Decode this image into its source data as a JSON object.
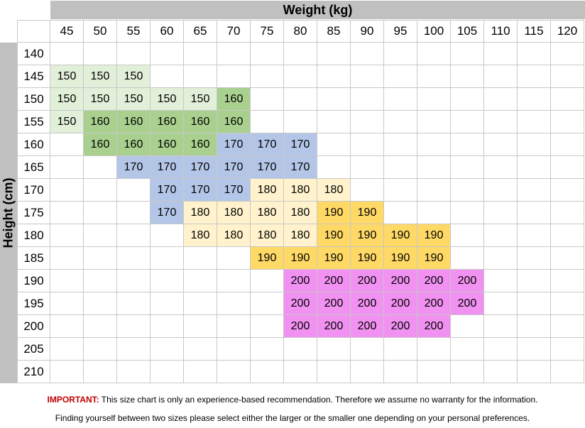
{
  "chart_data": {
    "type": "table",
    "title": "",
    "xlabel": "Weight (kg)",
    "ylabel": "Height (cm)",
    "weights": [
      45,
      50,
      55,
      60,
      65,
      70,
      75,
      80,
      85,
      90,
      95,
      100,
      105,
      110,
      115,
      120
    ],
    "heights": [
      140,
      145,
      150,
      155,
      160,
      165,
      170,
      175,
      180,
      185,
      190,
      195,
      200,
      205,
      210
    ],
    "size_colors": {
      "150": "#e2efd9",
      "160": "#a9d08e",
      "170": "#b4c6e7",
      "180": "#fff2cc",
      "190": "#ffd966",
      "200": "#f191f1"
    },
    "sizes": [
      [
        null,
        null,
        null,
        null,
        null,
        null,
        null,
        null,
        null,
        null,
        null,
        null,
        null,
        null,
        null,
        null
      ],
      [
        150,
        150,
        150,
        null,
        null,
        null,
        null,
        null,
        null,
        null,
        null,
        null,
        null,
        null,
        null,
        null
      ],
      [
        150,
        150,
        150,
        150,
        150,
        160,
        null,
        null,
        null,
        null,
        null,
        null,
        null,
        null,
        null,
        null
      ],
      [
        150,
        160,
        160,
        160,
        160,
        160,
        null,
        null,
        null,
        null,
        null,
        null,
        null,
        null,
        null,
        null
      ],
      [
        null,
        160,
        160,
        160,
        160,
        170,
        170,
        170,
        null,
        null,
        null,
        null,
        null,
        null,
        null,
        null
      ],
      [
        null,
        null,
        170,
        170,
        170,
        170,
        170,
        170,
        null,
        null,
        null,
        null,
        null,
        null,
        null,
        null
      ],
      [
        null,
        null,
        null,
        170,
        170,
        170,
        180,
        180,
        180,
        null,
        null,
        null,
        null,
        null,
        null,
        null
      ],
      [
        null,
        null,
        null,
        170,
        180,
        180,
        180,
        180,
        190,
        190,
        null,
        null,
        null,
        null,
        null,
        null
      ],
      [
        null,
        null,
        null,
        null,
        180,
        180,
        180,
        180,
        190,
        190,
        190,
        190,
        null,
        null,
        null,
        null
      ],
      [
        null,
        null,
        null,
        null,
        null,
        null,
        190,
        190,
        190,
        190,
        190,
        190,
        null,
        null,
        null,
        null
      ],
      [
        null,
        null,
        null,
        null,
        null,
        null,
        null,
        200,
        200,
        200,
        200,
        200,
        200,
        null,
        null,
        null
      ],
      [
        null,
        null,
        null,
        null,
        null,
        null,
        null,
        200,
        200,
        200,
        200,
        200,
        200,
        null,
        null,
        null
      ],
      [
        null,
        null,
        null,
        null,
        null,
        null,
        null,
        200,
        200,
        200,
        200,
        200,
        null,
        null,
        null,
        null
      ],
      [
        null,
        null,
        null,
        null,
        null,
        null,
        null,
        null,
        null,
        null,
        null,
        null,
        null,
        null,
        null,
        null
      ],
      [
        null,
        null,
        null,
        null,
        null,
        null,
        null,
        null,
        null,
        null,
        null,
        null,
        null,
        null,
        null,
        null
      ]
    ]
  },
  "notes": {
    "important_label": "IMPORTANT:",
    "line1": " This size chart is only an experience-based recommendation. Therefore we assume no warranty for the information.",
    "line2": "Finding yourself between two sizes please select either the larger or the smaller one depending on your personal preferences."
  }
}
